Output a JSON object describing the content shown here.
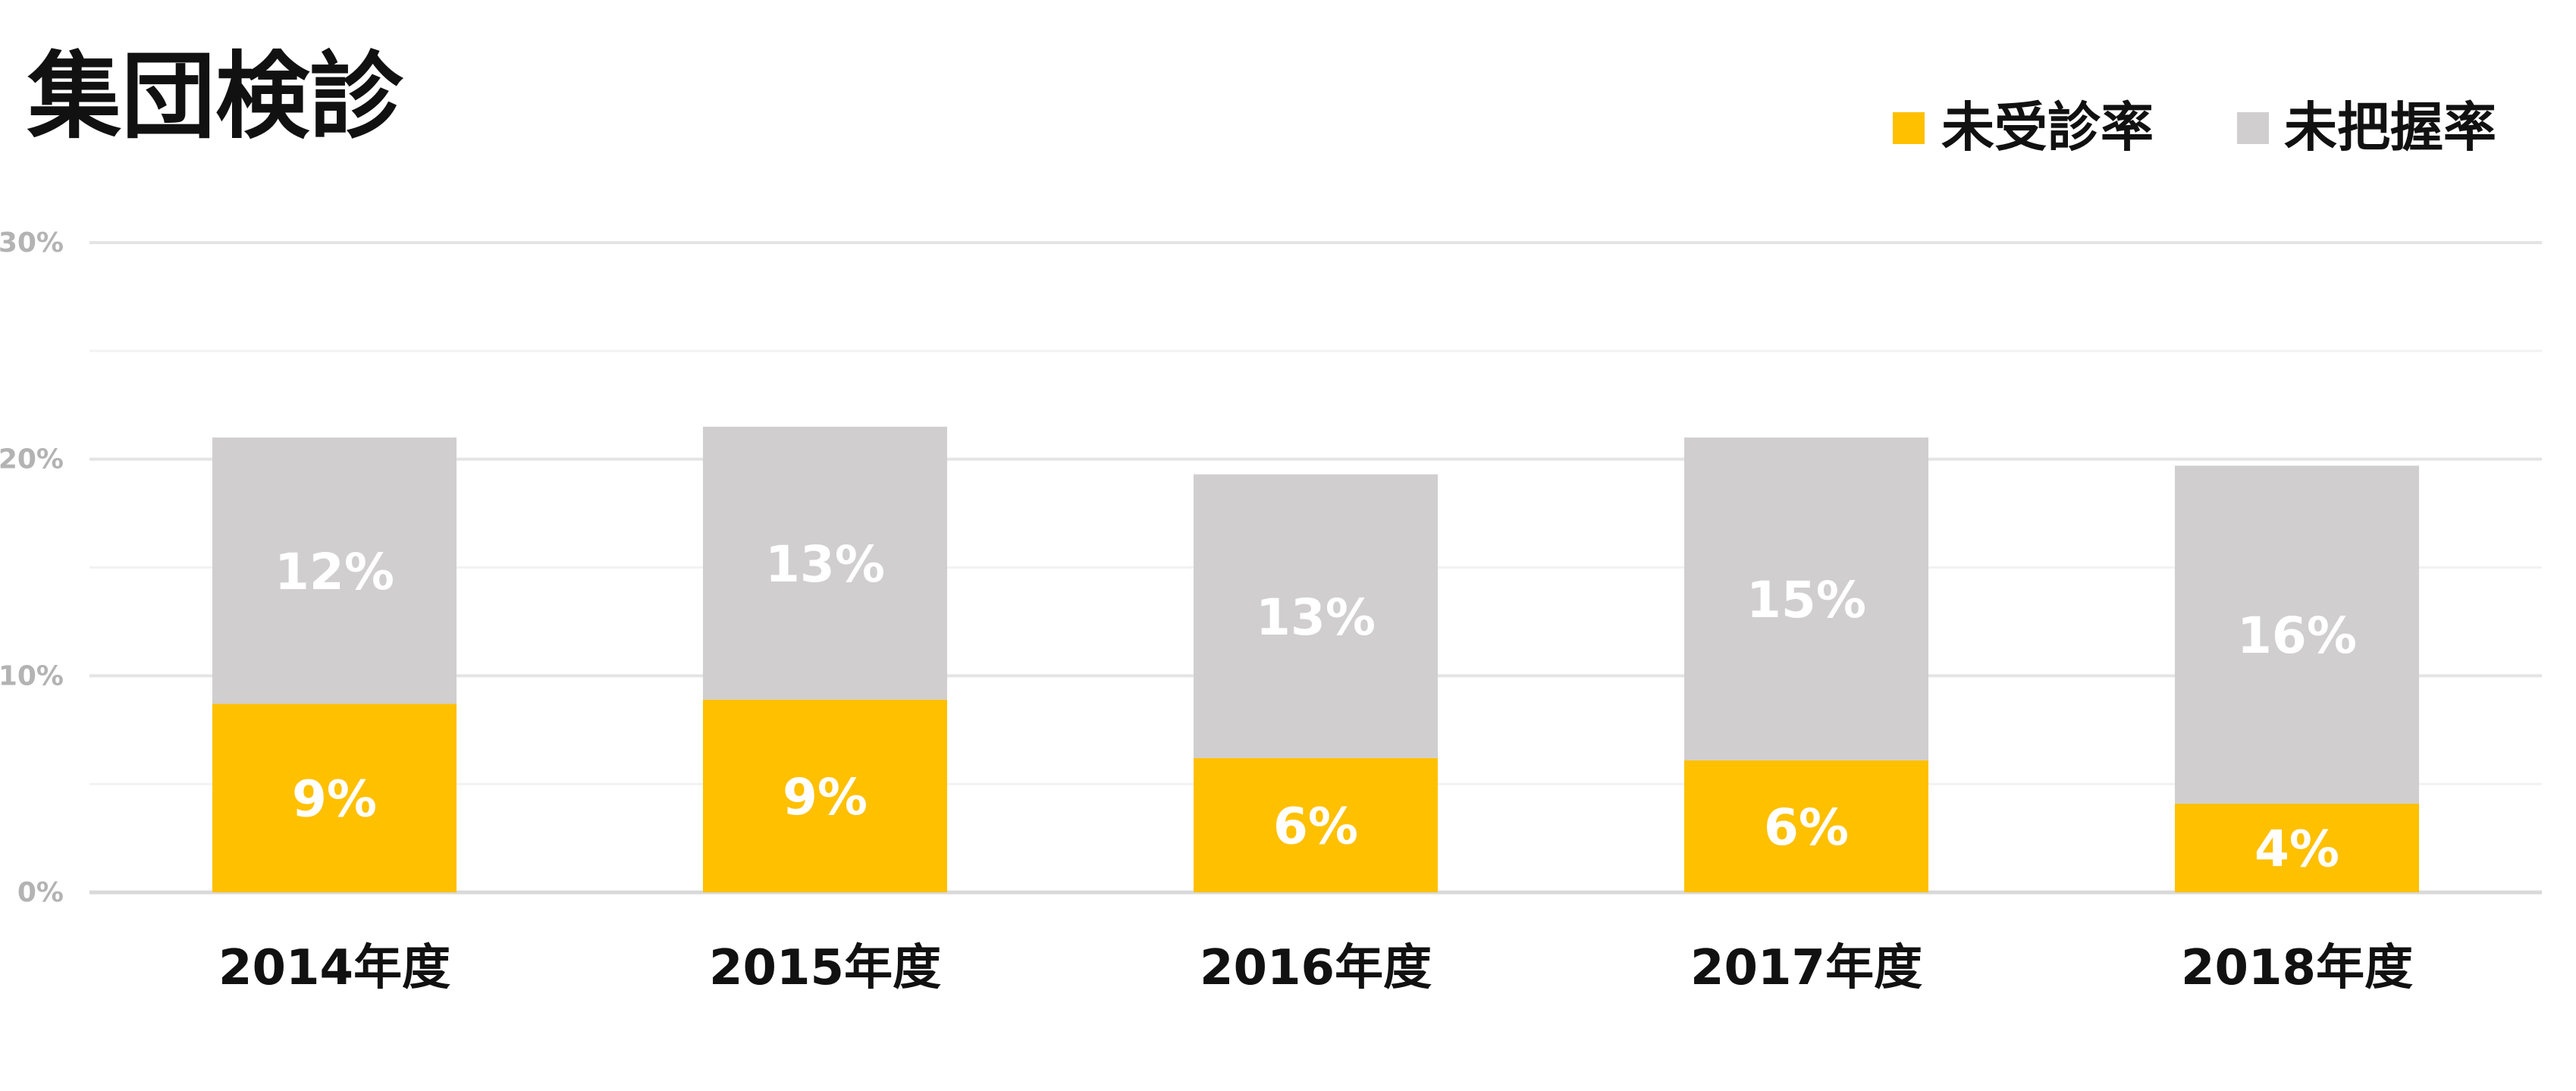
{
  "colors": {
    "unexamined": "#FFC000",
    "unknown": "#D0CECE",
    "grid_major": "#E4E4E4",
    "grid_minor": "#F2F2F2",
    "axis": "#D9D9D9",
    "title": "#111111",
    "tick": "#B3B3B3",
    "data_label": "#FFFFFF"
  },
  "chart_data": {
    "type": "bar",
    "stacked": true,
    "title": "集団検診",
    "xlabel": "",
    "ylabel": "",
    "ylim": [
      0,
      30
    ],
    "yticks": [
      0,
      10,
      20,
      30
    ],
    "ytick_labels": [
      "0%",
      "10%",
      "20%",
      "30%"
    ],
    "grid": true,
    "legend_position": "top-right",
    "categories": [
      "2014年度",
      "2015年度",
      "2016年度",
      "2017年度",
      "2018年度"
    ],
    "series": [
      {
        "name": "未受診率",
        "color": "#FFC000",
        "values": [
          8.7,
          8.9,
          6.2,
          6.1,
          4.1
        ],
        "labels": [
          "9%",
          "9%",
          "6%",
          "6%",
          "4%"
        ]
      },
      {
        "name": "未把握率",
        "color": "#D0CECE",
        "values": [
          12.3,
          12.6,
          13.1,
          14.9,
          15.6
        ],
        "labels": [
          "12%",
          "13%",
          "13%",
          "15%",
          "16%"
        ]
      }
    ]
  }
}
